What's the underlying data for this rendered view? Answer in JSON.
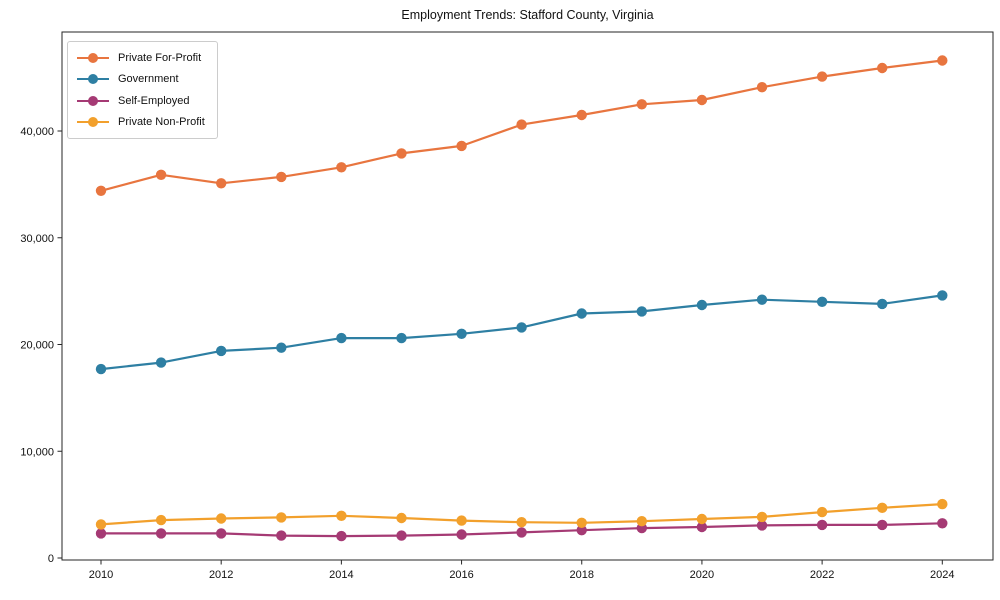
{
  "chart_data": {
    "type": "line",
    "title": "Employment Trends: Stafford County, Virginia",
    "xlabel": "",
    "ylabel": "",
    "x": [
      2010,
      2011,
      2012,
      2013,
      2014,
      2015,
      2016,
      2017,
      2018,
      2019,
      2020,
      2021,
      2022,
      2023,
      2024
    ],
    "xticks": [
      2010,
      2012,
      2014,
      2016,
      2018,
      2020,
      2022,
      2024
    ],
    "yticks": [
      {
        "value": 0,
        "label": "0"
      },
      {
        "value": 10000,
        "label": "10,000"
      },
      {
        "value": 20000,
        "label": "20,000"
      },
      {
        "value": 30000,
        "label": "30,000"
      },
      {
        "value": 40000,
        "label": "40,000"
      }
    ],
    "ylim": [
      0,
      49300
    ],
    "grid": false,
    "legend_position": "upper-left",
    "series": [
      {
        "id": "private-for-profit",
        "name": "Private For-Profit",
        "color": "#e8753f",
        "values": [
          34400,
          35900,
          35100,
          35700,
          36600,
          37900,
          38600,
          40600,
          41500,
          42500,
          42900,
          44100,
          45100,
          45900,
          46600
        ]
      },
      {
        "id": "government",
        "name": "Government",
        "color": "#2e7fa3",
        "values": [
          17700,
          18300,
          19400,
          19700,
          20600,
          20600,
          21000,
          21600,
          22900,
          23100,
          23700,
          24200,
          24000,
          23800,
          24600
        ]
      },
      {
        "id": "self-employed",
        "name": "Self-Employed",
        "color": "#a53a74",
        "values": [
          2300,
          2300,
          2300,
          2100,
          2050,
          2100,
          2200,
          2400,
          2600,
          2800,
          2900,
          3050,
          3100,
          3100,
          3250
        ]
      },
      {
        "id": "private-non-profit",
        "name": "Private Non-Profit",
        "color": "#f2a02c",
        "values": [
          3150,
          3550,
          3700,
          3800,
          3950,
          3750,
          3500,
          3350,
          3300,
          3450,
          3650,
          3850,
          4300,
          4700,
          5050
        ]
      }
    ]
  }
}
